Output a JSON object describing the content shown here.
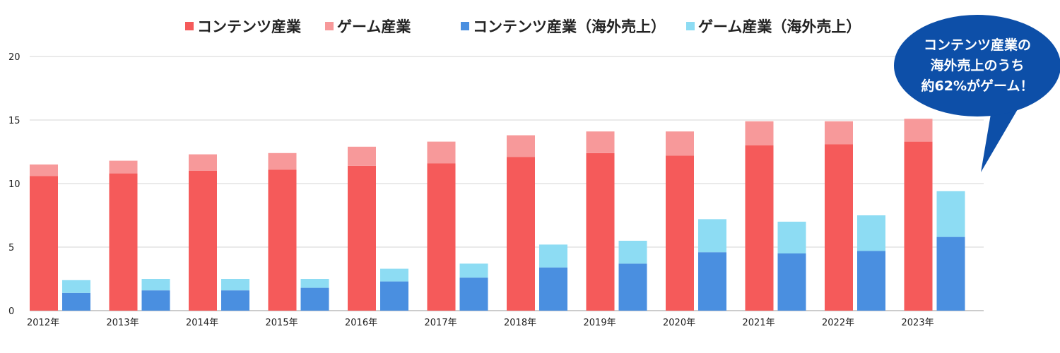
{
  "chart_data": {
    "type": "bar",
    "stacked": true,
    "categories": [
      "2012年",
      "2013年",
      "2014年",
      "2015年",
      "2016年",
      "2017年",
      "2018年",
      "2019年",
      "2020年",
      "2021年",
      "2022年",
      "2023年"
    ],
    "groups": [
      {
        "id": "domestic",
        "series": [
          {
            "name": "コンテンツ産業",
            "color": "#f55a5a",
            "values": [
              10.6,
              10.8,
              11.0,
              11.1,
              11.4,
              11.6,
              12.1,
              12.4,
              12.2,
              13.0,
              13.1,
              13.3
            ]
          },
          {
            "name": "ゲーム産業",
            "color": "#f7999a",
            "values": [
              0.9,
              1.0,
              1.3,
              1.3,
              1.5,
              1.7,
              1.7,
              1.7,
              1.9,
              1.9,
              1.8,
              1.8
            ]
          }
        ]
      },
      {
        "id": "overseas",
        "series": [
          {
            "name": "コンテンツ産業（海外売上）",
            "color": "#4a8fe0",
            "values": [
              1.4,
              1.6,
              1.6,
              1.8,
              2.3,
              2.6,
              3.4,
              3.7,
              4.6,
              4.5,
              4.7,
              5.8
            ]
          },
          {
            "name": "ゲーム産業（海外売上）",
            "color": "#8ddcf3",
            "values": [
              1.0,
              0.9,
              0.9,
              0.7,
              1.0,
              1.1,
              1.8,
              1.8,
              2.6,
              2.5,
              2.8,
              3.6
            ]
          }
        ]
      }
    ],
    "yticks": [
      0,
      5,
      10,
      15,
      20
    ],
    "ylim": [
      0,
      20
    ],
    "grid": true,
    "legend": "top",
    "callout": {
      "lines": [
        "コンテンツ産業の",
        "海外売上のうち",
        "約62%がゲーム！"
      ],
      "fill": "#0d4fa8"
    }
  }
}
